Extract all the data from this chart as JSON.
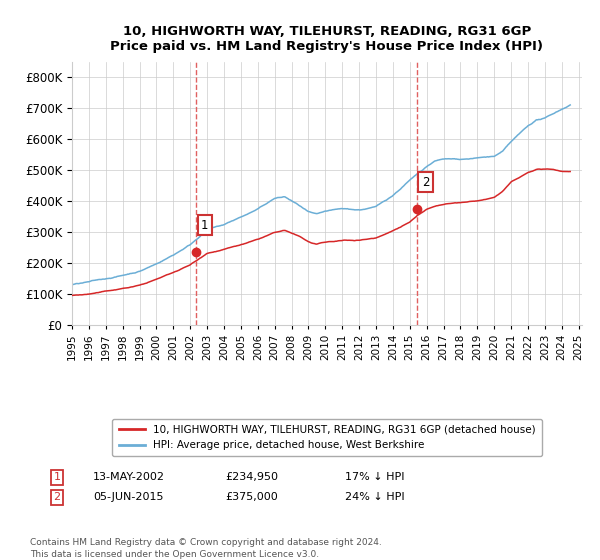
{
  "title1": "10, HIGHWORTH WAY, TILEHURST, READING, RG31 6GP",
  "title2": "Price paid vs. HM Land Registry's House Price Index (HPI)",
  "legend_line1": "10, HIGHWORTH WAY, TILEHURST, READING, RG31 6GP (detached house)",
  "legend_line2": "HPI: Average price, detached house, West Berkshire",
  "annotation1_date": "13-MAY-2002",
  "annotation1_price": "£234,950",
  "annotation1_hpi": "17% ↓ HPI",
  "annotation2_date": "05-JUN-2015",
  "annotation2_price": "£375,000",
  "annotation2_hpi": "24% ↓ HPI",
  "footnote": "Contains HM Land Registry data © Crown copyright and database right 2024.\nThis data is licensed under the Open Government Licence v3.0.",
  "hpi_color": "#6baed6",
  "price_color": "#d62728",
  "vline_color": "#e06060",
  "marker_color": "#d62728",
  "ylim_min": 0,
  "ylim_max": 850000,
  "sale1_year": 2002.37,
  "sale1_price": 234950,
  "sale2_year": 2015.43,
  "sale2_price": 375000,
  "background_color": "#ffffff",
  "grid_color": "#cccccc",
  "hpi_key_years": [
    1995,
    1996,
    1997,
    1998,
    1999,
    2000,
    2001,
    2002,
    2002.5,
    2003,
    2004,
    2005,
    2006,
    2007,
    2007.6,
    2008.5,
    2009,
    2009.5,
    2010,
    2011,
    2012,
    2013,
    2014,
    2015,
    2016,
    2016.5,
    2017,
    2018,
    2019,
    2020,
    2020.5,
    2021,
    2022,
    2022.5,
    2023,
    2023.5,
    2024,
    2024.5
  ],
  "hpi_key_vals": [
    130000,
    138000,
    148000,
    160000,
    175000,
    200000,
    230000,
    265000,
    290000,
    315000,
    330000,
    355000,
    380000,
    415000,
    420000,
    390000,
    370000,
    360000,
    368000,
    375000,
    372000,
    382000,
    420000,
    470000,
    510000,
    530000,
    535000,
    535000,
    540000,
    545000,
    560000,
    590000,
    640000,
    660000,
    665000,
    680000,
    695000,
    710000
  ],
  "price_key_years": [
    1995,
    1996,
    1997,
    1998,
    1999,
    2000,
    2001,
    2002,
    2002.37,
    2003,
    2004,
    2005,
    2006,
    2007,
    2007.6,
    2008.5,
    2009,
    2009.5,
    2010,
    2011,
    2012,
    2013,
    2014,
    2015,
    2015.43,
    2016,
    2016.5,
    2017,
    2018,
    2019,
    2020,
    2020.5,
    2021,
    2022,
    2022.5,
    2023,
    2023.5,
    2024,
    2024.5
  ],
  "price_key_vals": [
    95000,
    100000,
    108000,
    118000,
    128000,
    148000,
    170000,
    195000,
    210000,
    235000,
    248000,
    262000,
    278000,
    300000,
    305000,
    285000,
    268000,
    260000,
    265000,
    270000,
    272000,
    280000,
    305000,
    335000,
    355000,
    375000,
    385000,
    390000,
    395000,
    400000,
    410000,
    430000,
    460000,
    490000,
    500000,
    500000,
    500000,
    495000,
    495000
  ]
}
